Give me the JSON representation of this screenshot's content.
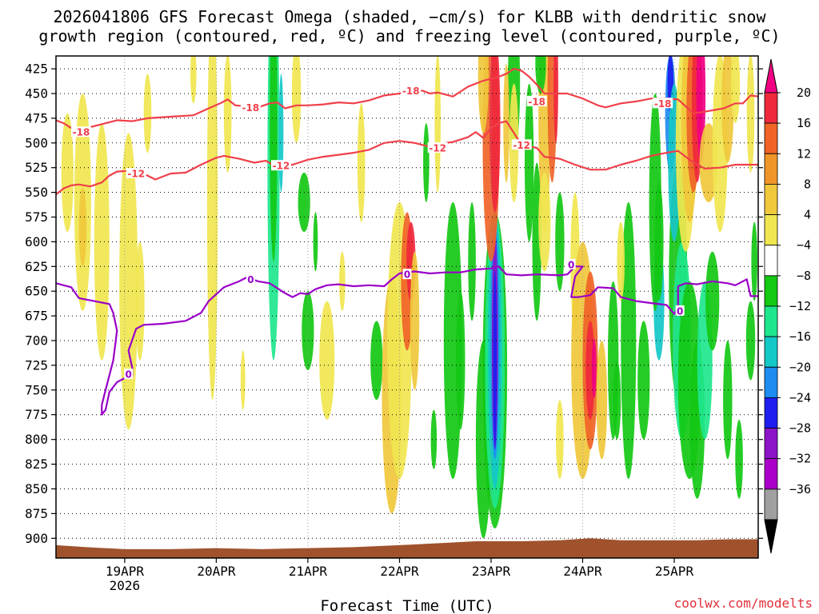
{
  "chart_data": {
    "type": "heatmap",
    "title_line1": "2026041806 GFS Forecast Omega (shaded, −cm/s) for KLBB with dendritic snow",
    "title_line2": "growth region (contoured, red, ºC) and freezing level (contoured, purple, ºC)",
    "xlabel": "Forecast Time (UTC)",
    "credit": "coolwx.com/modelts",
    "y_axis": {
      "ticks": [
        425,
        450,
        475,
        500,
        525,
        550,
        575,
        600,
        625,
        650,
        675,
        700,
        725,
        750,
        775,
        800,
        825,
        850,
        875,
        900
      ],
      "range_hpa": [
        412,
        920
      ]
    },
    "x_axis": {
      "range_hours": [
        0,
        184
      ],
      "ticks": [
        {
          "label": "19APR",
          "sublabel": "2026",
          "hour": 18
        },
        {
          "label": "20APR",
          "sublabel": "",
          "hour": 42
        },
        {
          "label": "21APR",
          "sublabel": "",
          "hour": 66
        },
        {
          "label": "22APR",
          "sublabel": "",
          "hour": 90
        },
        {
          "label": "23APR",
          "sublabel": "",
          "hour": 114
        },
        {
          "label": "24APR",
          "sublabel": "",
          "hour": 138
        },
        {
          "label": "25APR",
          "sublabel": "",
          "hour": 162
        }
      ]
    },
    "colorbar": {
      "labels": [
        "20",
        "16",
        "12",
        "8",
        "4",
        "−4",
        "−8",
        "−12",
        "−16",
        "−20",
        "−24",
        "−28",
        "−32",
        "−36"
      ],
      "colors": [
        "#f0283c",
        "#f06428",
        "#f09628",
        "#f0c83c",
        "#f0e650",
        "#ffffff",
        "#14c814",
        "#1ee68c",
        "#14c8c8",
        "#1e8cf0",
        "#1e1ef0",
        "#8c14c8",
        "#aa00c8",
        "#a0a0a0",
        "#000000"
      ],
      "top_arrow_color": "#f00082",
      "bottom_arrow_color": "#000000"
    },
    "colors": {
      "red_contour": "#f0404a",
      "purple_contour": "#9a00c8",
      "ground": "#a0522d"
    },
    "contours": [
      {
        "label": "-18",
        "color": "red",
        "points": [
          [
            0,
            477
          ],
          [
            2,
            480
          ],
          [
            4,
            485
          ],
          [
            6,
            489
          ],
          [
            9,
            484
          ],
          [
            12,
            481
          ],
          [
            16,
            477
          ],
          [
            20,
            478
          ],
          [
            24,
            475
          ],
          [
            28,
            474
          ],
          [
            32,
            473
          ],
          [
            36,
            472
          ],
          [
            40,
            465
          ],
          [
            43,
            460
          ],
          [
            45,
            456
          ],
          [
            47,
            462
          ],
          [
            50,
            463
          ],
          [
            53,
            464
          ],
          [
            56,
            460
          ],
          [
            58,
            459
          ],
          [
            60,
            465
          ],
          [
            63,
            462
          ],
          [
            66,
            462
          ],
          [
            70,
            461
          ],
          [
            74,
            459
          ],
          [
            78,
            460
          ],
          [
            82,
            457
          ],
          [
            86,
            452
          ],
          [
            90,
            450
          ],
          [
            92,
            447
          ],
          [
            94,
            449
          ],
          [
            96,
            447
          ],
          [
            98,
            450
          ],
          [
            100,
            449
          ],
          [
            104,
            453
          ],
          [
            106,
            448
          ],
          [
            108,
            443
          ],
          [
            112,
            437
          ],
          [
            116,
            433
          ],
          [
            118,
            430
          ],
          [
            120,
            425
          ],
          [
            122,
            427
          ],
          [
            124,
            433
          ],
          [
            126,
            441
          ],
          [
            128,
            450
          ],
          [
            130,
            450
          ],
          [
            134,
            450
          ],
          [
            138,
            455
          ],
          [
            142,
            462
          ],
          [
            144,
            464
          ],
          [
            148,
            460
          ],
          [
            152,
            458
          ],
          [
            156,
            455
          ],
          [
            160,
            455
          ],
          [
            163,
            456
          ],
          [
            165,
            463
          ],
          [
            167,
            470
          ],
          [
            169,
            469
          ],
          [
            172,
            467
          ],
          [
            175,
            465
          ],
          [
            178,
            460
          ],
          [
            180,
            460
          ],
          [
            182,
            452
          ],
          [
            184,
            453
          ]
        ],
        "labels": [
          {
            "hour": 6.6,
            "hpa": 489
          },
          {
            "hour": 51,
            "hpa": 464
          },
          {
            "hour": 93,
            "hpa": 447
          },
          {
            "hour": 126,
            "hpa": 458
          },
          {
            "hour": 159,
            "hpa": 460
          }
        ]
      },
      {
        "label": "-12",
        "color": "red",
        "points": [
          [
            0,
            552
          ],
          [
            2,
            546
          ],
          [
            4,
            543
          ],
          [
            6,
            542
          ],
          [
            9,
            544
          ],
          [
            12,
            540
          ],
          [
            14,
            533
          ],
          [
            16,
            529
          ],
          [
            20,
            528
          ],
          [
            24,
            533
          ],
          [
            26,
            537
          ],
          [
            30,
            531
          ],
          [
            34,
            530
          ],
          [
            38,
            522
          ],
          [
            42,
            515
          ],
          [
            44,
            513
          ],
          [
            48,
            516
          ],
          [
            52,
            520
          ],
          [
            55,
            518
          ],
          [
            58,
            525
          ],
          [
            62,
            522
          ],
          [
            66,
            517
          ],
          [
            70,
            514
          ],
          [
            74,
            512
          ],
          [
            78,
            510
          ],
          [
            82,
            507
          ],
          [
            86,
            500
          ],
          [
            90,
            498
          ],
          [
            94,
            500
          ],
          [
            98,
            504
          ],
          [
            102,
            500
          ],
          [
            104,
            499
          ],
          [
            108,
            494
          ],
          [
            110,
            489
          ],
          [
            112,
            495
          ],
          [
            114,
            485
          ],
          [
            116,
            480
          ],
          [
            118,
            478
          ],
          [
            120,
            490
          ],
          [
            122,
            502
          ],
          [
            126,
            505
          ],
          [
            128,
            514
          ],
          [
            132,
            516
          ],
          [
            136,
            522
          ],
          [
            140,
            527
          ],
          [
            144,
            527
          ],
          [
            148,
            522
          ],
          [
            152,
            518
          ],
          [
            156,
            513
          ],
          [
            160,
            510
          ],
          [
            163,
            508
          ],
          [
            166,
            517
          ],
          [
            170,
            526
          ],
          [
            174,
            525
          ],
          [
            178,
            522
          ],
          [
            184,
            522
          ]
        ],
        "labels": [
          {
            "hour": 21,
            "hpa": 531
          },
          {
            "hour": 59,
            "hpa": 523
          },
          {
            "hour": 100,
            "hpa": 505
          },
          {
            "hour": 122,
            "hpa": 502
          }
        ]
      },
      {
        "label": "0",
        "color": "purple",
        "points": [
          [
            0,
            642
          ],
          [
            4,
            646
          ],
          [
            6,
            657
          ],
          [
            10,
            660
          ],
          [
            14,
            663
          ],
          [
            15,
            672
          ],
          [
            16,
            690
          ],
          [
            15,
            720
          ],
          [
            13,
            750
          ],
          [
            12,
            765
          ],
          [
            12,
            775
          ],
          [
            13,
            770
          ],
          [
            14,
            752
          ],
          [
            16,
            742
          ],
          [
            18,
            738
          ],
          [
            20,
            736
          ],
          [
            20,
            728
          ],
          [
            19,
            710
          ],
          [
            21,
            688
          ],
          [
            23,
            684
          ],
          [
            28,
            683
          ],
          [
            34,
            680
          ],
          [
            38,
            672
          ],
          [
            40,
            660
          ],
          [
            44,
            646
          ],
          [
            48,
            640
          ],
          [
            50,
            636
          ],
          [
            53,
            640
          ],
          [
            56,
            642
          ],
          [
            60,
            652
          ],
          [
            62,
            656
          ],
          [
            64,
            652
          ],
          [
            66,
            653
          ],
          [
            68,
            648
          ],
          [
            71,
            644
          ],
          [
            74,
            643
          ],
          [
            78,
            645
          ],
          [
            82,
            644
          ],
          [
            86,
            645
          ],
          [
            88,
            638
          ],
          [
            90,
            632
          ],
          [
            94,
            630
          ],
          [
            98,
            632
          ],
          [
            102,
            631
          ],
          [
            106,
            631
          ],
          [
            110,
            628
          ],
          [
            114,
            627
          ],
          [
            116,
            625
          ],
          [
            118,
            633
          ],
          [
            122,
            634
          ],
          [
            126,
            633
          ],
          [
            132,
            634
          ],
          [
            134,
            633
          ],
          [
            136,
            625
          ],
          [
            138,
            625
          ],
          [
            136,
            635
          ],
          [
            135,
            656
          ],
          [
            137,
            656
          ],
          [
            140,
            654
          ],
          [
            142,
            646
          ],
          [
            146,
            647
          ],
          [
            148,
            656
          ],
          [
            152,
            660
          ],
          [
            156,
            662
          ],
          [
            160,
            664
          ],
          [
            162,
            673
          ],
          [
            163,
            667
          ],
          [
            163,
            645
          ],
          [
            165,
            642
          ],
          [
            168,
            643
          ],
          [
            172,
            640
          ],
          [
            176,
            642
          ],
          [
            178,
            644
          ],
          [
            181,
            638
          ],
          [
            182,
            655
          ],
          [
            184,
            655
          ]
        ],
        "labels": [
          {
            "hour": 51,
            "hpa": 638
          },
          {
            "hour": 92,
            "hpa": 633
          },
          {
            "hour": 135,
            "hpa": 623
          },
          {
            "hour": 19,
            "hpa": 734
          },
          {
            "hour": 163.5,
            "hpa": 670
          }
        ]
      }
    ]
  }
}
